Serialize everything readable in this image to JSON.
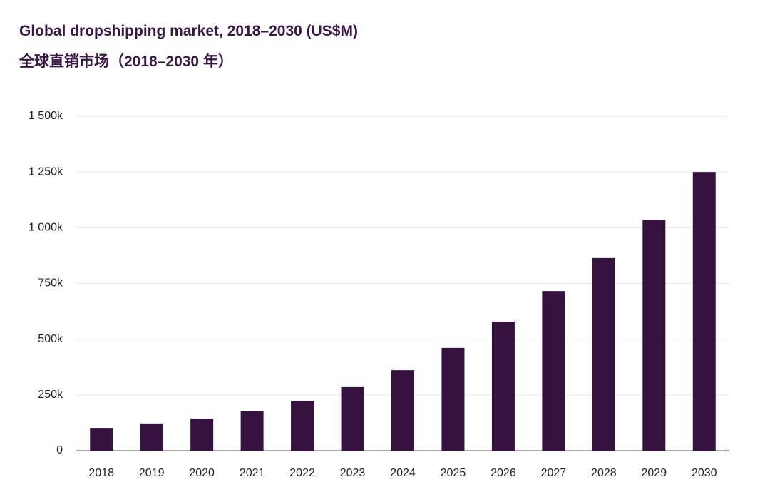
{
  "chart_data": {
    "type": "bar",
    "title": "Global dropshipping market, 2018–2030 (US$M)",
    "subtitle": "全球直销市场（2018–2030 年）",
    "categories": [
      "2018",
      "2019",
      "2020",
      "2021",
      "2022",
      "2023",
      "2024",
      "2025",
      "2026",
      "2027",
      "2028",
      "2029",
      "2030"
    ],
    "values": [
      102000,
      122000,
      144000,
      179000,
      224000,
      285000,
      361000,
      461000,
      579000,
      716000,
      864000,
      1036000,
      1250000
    ],
    "color": "#36133f",
    "ylim": [
      0,
      1500000
    ],
    "yticks": [
      0,
      {
        "value": 250000,
        "label": "250k"
      },
      {
        "value": 500000,
        "label": "500k"
      },
      {
        "value": 750000,
        "label": "750k"
      },
      {
        "value": 1000000,
        "label": "1 000k"
      },
      {
        "value": 1250000,
        "label": "1 250k"
      },
      {
        "value": 1500000,
        "label": "1 500k"
      }
    ],
    "grid": true
  }
}
